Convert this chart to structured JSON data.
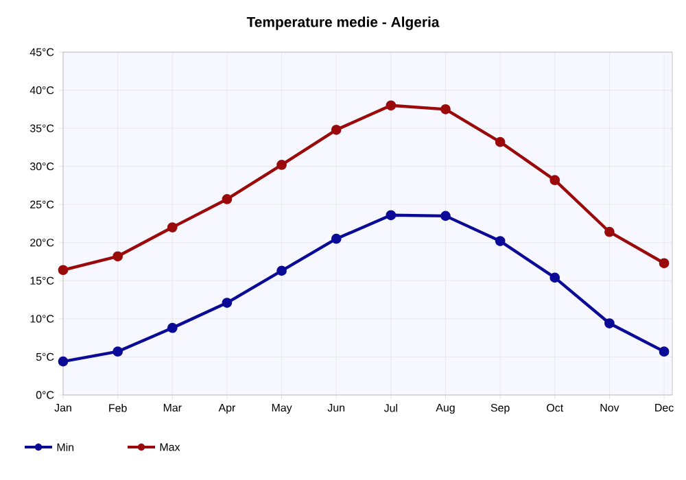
{
  "chart_data": {
    "type": "line",
    "title": "Temperature medie - Algeria",
    "categories": [
      "Jan",
      "Feb",
      "Mar",
      "Apr",
      "May",
      "Jun",
      "Jul",
      "Aug",
      "Sep",
      "Oct",
      "Nov",
      "Dec"
    ],
    "series": [
      {
        "name": "Min",
        "color": "#0a0a96",
        "values": [
          4.4,
          5.7,
          8.8,
          12.1,
          16.3,
          20.5,
          23.6,
          23.5,
          20.2,
          15.4,
          9.4,
          5.7
        ]
      },
      {
        "name": "Max",
        "color": "#9b0a0a",
        "values": [
          16.4,
          18.2,
          22.0,
          25.7,
          30.2,
          34.8,
          38.0,
          37.5,
          33.2,
          28.2,
          21.4,
          17.3
        ]
      }
    ],
    "ylim": [
      0,
      45
    ],
    "yticks": [
      {
        "value": 0,
        "label": "0°C"
      },
      {
        "value": 5,
        "label": "5°C"
      },
      {
        "value": 10,
        "label": "10°C"
      },
      {
        "value": 15,
        "label": "15°C"
      },
      {
        "value": 20,
        "label": "20°C"
      },
      {
        "value": 25,
        "label": "25°C"
      },
      {
        "value": 30,
        "label": "30°C"
      },
      {
        "value": 35,
        "label": "35°C"
      },
      {
        "value": 40,
        "label": "40°C"
      },
      {
        "value": 45,
        "label": "45°C"
      }
    ],
    "grid": true,
    "legend": "bottom left",
    "marker": "circle",
    "line_style": "solid"
  }
}
